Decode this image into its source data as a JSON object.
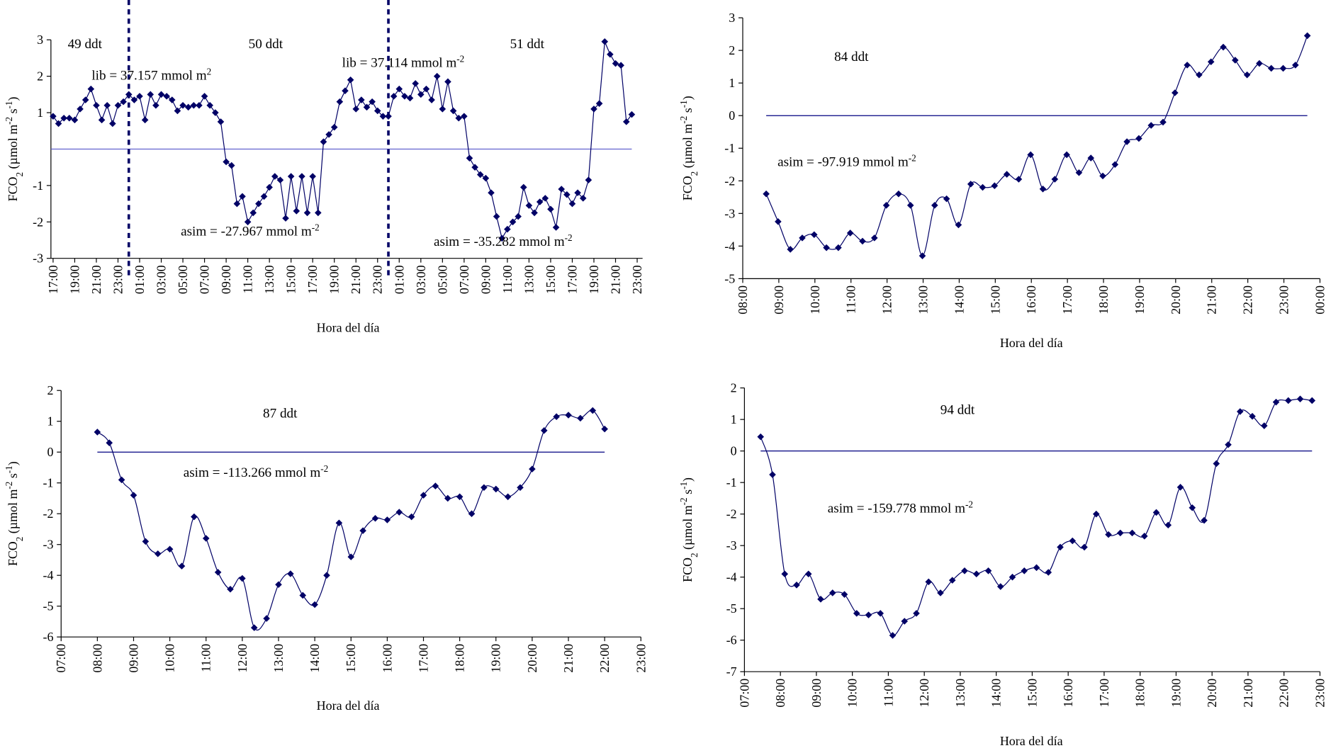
{
  "chart_data": [
    {
      "type": "line",
      "smooth": false,
      "color": "#000066",
      "hline": 0,
      "hline_color": "#5555cc",
      "vlines": [
        24,
        48
      ],
      "ylabel": [
        {
          "text": "FCO"
        },
        {
          "text": "2",
          "sub": true
        },
        {
          "text": " (µmol m"
        },
        {
          "text": "-2",
          "sup": true
        },
        {
          "text": " s"
        },
        {
          "text": "-1",
          "sup": true
        },
        {
          "text": ")"
        }
      ],
      "xlabel": "Hora del día",
      "annotations": [
        {
          "text": "49 ddt"
        },
        {
          "text": "50 ddt"
        },
        {
          "text": "51 ddt"
        },
        {
          "text": "lib = 37.157 mmol m",
          "sup": "2"
        },
        {
          "text": "lib = 37.114 mmol m",
          "sup": "-2"
        },
        {
          "text": "asim = -27.967 mmol m",
          "sup": "-2"
        },
        {
          "text": "asim = -35.282 mmol m",
          "sup": "-2"
        }
      ],
      "xlim": [
        16.8,
        71.5
      ],
      "ylim": [
        -3,
        3
      ],
      "yticks": [
        -3,
        -2,
        -1,
        1,
        2,
        3
      ],
      "xticks": [
        {
          "value": 17,
          "label": "17:00"
        },
        {
          "value": 19,
          "label": "19:00"
        },
        {
          "value": 21,
          "label": "21:00"
        },
        {
          "value": 23,
          "label": "23:00"
        },
        {
          "value": 25,
          "label": "01:00"
        },
        {
          "value": 27,
          "label": "03:00"
        },
        {
          "value": 29,
          "label": "05:00"
        },
        {
          "value": 31,
          "label": "07:00"
        },
        {
          "value": 33,
          "label": "09:00"
        },
        {
          "value": 35,
          "label": "11:00"
        },
        {
          "value": 37,
          "label": "13:00"
        },
        {
          "value": 39,
          "label": "15:00"
        },
        {
          "value": 41,
          "label": "17:00"
        },
        {
          "value": 43,
          "label": "19:00"
        },
        {
          "value": 45,
          "label": "21:00"
        },
        {
          "value": 47,
          "label": "23:00"
        },
        {
          "value": 49,
          "label": "01:00"
        },
        {
          "value": 51,
          "label": "03:00"
        },
        {
          "value": 53,
          "label": "05:00"
        },
        {
          "value": 55,
          "label": "07:00"
        },
        {
          "value": 57,
          "label": "09:00"
        },
        {
          "value": 59,
          "label": "11:00"
        },
        {
          "value": 61,
          "label": "13:00"
        },
        {
          "value": 63,
          "label": "15:00"
        },
        {
          "value": 65,
          "label": "17:00"
        },
        {
          "value": 67,
          "label": "19:00"
        },
        {
          "value": 69,
          "label": "21:00"
        },
        {
          "value": 71,
          "label": "23:00"
        }
      ],
      "x": [
        17,
        17.5,
        18,
        18.5,
        19,
        19.5,
        20,
        20.5,
        21,
        21.5,
        22,
        22.5,
        23,
        23.5,
        24,
        24.5,
        25,
        25.5,
        26,
        26.5,
        27,
        27.5,
        28,
        28.5,
        29,
        29.5,
        30,
        30.5,
        31,
        31.5,
        32,
        32.5,
        33,
        33.5,
        34,
        34.5,
        35,
        35.5,
        36,
        36.5,
        37,
        37.5,
        38,
        38.5,
        39,
        39.5,
        40,
        40.5,
        41,
        41.5,
        42,
        42.5,
        43,
        43.5,
        44,
        44.5,
        45,
        45.5,
        46,
        46.5,
        47,
        47.5,
        48,
        48.5,
        49,
        49.5,
        50,
        50.5,
        51,
        51.5,
        52,
        52.5,
        53,
        53.5,
        54,
        54.5,
        55,
        55.5,
        56,
        56.5,
        57,
        57.5,
        58,
        58.5,
        59,
        59.5,
        60,
        60.5,
        61,
        61.5,
        62,
        62.5,
        63,
        63.5,
        64,
        64.5,
        65,
        65.5,
        66,
        66.5,
        67,
        67.5,
        68,
        68.5,
        69,
        69.5,
        70,
        70.5
      ],
      "values": [
        0.9,
        0.7,
        0.85,
        0.85,
        0.8,
        1.1,
        1.35,
        1.65,
        1.2,
        0.8,
        1.2,
        0.7,
        1.2,
        1.3,
        1.5,
        1.35,
        1.45,
        0.8,
        1.5,
        1.2,
        1.5,
        1.45,
        1.35,
        1.05,
        1.2,
        1.15,
        1.2,
        1.2,
        1.45,
        1.2,
        1.0,
        0.75,
        -0.35,
        -0.45,
        -1.5,
        -1.3,
        -2.0,
        -1.75,
        -1.5,
        -1.3,
        -1.05,
        -0.75,
        -0.85,
        -1.9,
        -0.75,
        -1.7,
        -0.75,
        -1.75,
        -0.75,
        -1.75,
        0.2,
        0.4,
        0.6,
        1.3,
        1.6,
        1.9,
        1.1,
        1.35,
        1.15,
        1.3,
        1.05,
        0.9,
        0.9,
        1.45,
        1.65,
        1.45,
        1.4,
        1.8,
        1.5,
        1.65,
        1.35,
        2.0,
        1.1,
        1.85,
        1.05,
        0.85,
        0.9,
        -0.25,
        -0.5,
        -0.7,
        -0.8,
        -1.2,
        -1.85,
        -2.45,
        -2.2,
        -2.0,
        -1.85,
        -1.05,
        -1.55,
        -1.75,
        -1.45,
        -1.35,
        -1.65,
        -2.15,
        -1.1,
        -1.25,
        -1.5,
        -1.2,
        -1.35,
        -0.85,
        1.1,
        1.25,
        2.95,
        2.6,
        2.35,
        2.3,
        0.75,
        0.95
      ]
    },
    {
      "type": "line",
      "smooth": true,
      "color": "#000066",
      "hline": 0,
      "hline_color": "#000080",
      "ylabel": [
        {
          "text": "FCO"
        },
        {
          "text": "2",
          "sub": true
        },
        {
          "text": " (µmol m"
        },
        {
          "text": "-2",
          "sup": true
        },
        {
          "text": " s"
        },
        {
          "text": "-1",
          "sup": true
        },
        {
          "text": ")"
        }
      ],
      "xlabel": "Hora del día",
      "annotations": [
        {
          "text": "84 ddt"
        },
        {
          "text": "asim = -97.919 mmol m",
          "sup": "-2"
        }
      ],
      "xlim": [
        8,
        24
      ],
      "ylim": [
        -5,
        3
      ],
      "yticks": [
        -5,
        -4,
        -3,
        -2,
        -1,
        0,
        1,
        2,
        3
      ],
      "xticks": [
        {
          "value": 8,
          "label": "08:00"
        },
        {
          "value": 9,
          "label": "09:00"
        },
        {
          "value": 10,
          "label": "10:00"
        },
        {
          "value": 11,
          "label": "11:00"
        },
        {
          "value": 12,
          "label": "12:00"
        },
        {
          "value": 13,
          "label": "13:00"
        },
        {
          "value": 14,
          "label": "14:00"
        },
        {
          "value": 15,
          "label": "15:00"
        },
        {
          "value": 16,
          "label": "16:00"
        },
        {
          "value": 17,
          "label": "17:00"
        },
        {
          "value": 18,
          "label": "18:00"
        },
        {
          "value": 19,
          "label": "19:00"
        },
        {
          "value": 20,
          "label": "20:00"
        },
        {
          "value": 21,
          "label": "21:00"
        },
        {
          "value": 22,
          "label": "22:00"
        },
        {
          "value": 23,
          "label": "23:00"
        },
        {
          "value": 24,
          "label": "00:00"
        }
      ],
      "x": [
        8.65,
        8.98,
        9.32,
        9.65,
        9.98,
        10.32,
        10.65,
        10.98,
        11.32,
        11.65,
        11.98,
        12.32,
        12.65,
        12.98,
        13.32,
        13.65,
        13.98,
        14.32,
        14.65,
        14.98,
        15.32,
        15.65,
        15.98,
        16.32,
        16.65,
        16.98,
        17.32,
        17.65,
        17.98,
        18.32,
        18.65,
        18.98,
        19.32,
        19.65,
        19.98,
        20.32,
        20.65,
        20.98,
        21.32,
        21.65,
        21.98,
        22.32,
        22.65,
        22.98,
        23.32,
        23.65
      ],
      "values": [
        -2.4,
        -3.25,
        -4.1,
        -3.75,
        -3.65,
        -4.05,
        -4.05,
        -3.6,
        -3.85,
        -3.75,
        -2.75,
        -2.4,
        -2.75,
        -4.3,
        -2.75,
        -2.55,
        -3.35,
        -2.1,
        -2.2,
        -2.15,
        -1.8,
        -1.95,
        -1.2,
        -2.25,
        -1.95,
        -1.2,
        -1.75,
        -1.3,
        -1.85,
        -1.5,
        -0.8,
        -0.7,
        -0.3,
        -0.2,
        0.7,
        1.55,
        1.25,
        1.65,
        2.1,
        1.7,
        1.25,
        1.6,
        1.45,
        1.45,
        1.55,
        2.45
      ]
    },
    {
      "type": "line",
      "smooth": true,
      "color": "#000066",
      "hline": 0,
      "hline_color": "#000080",
      "ylabel": [
        {
          "text": "FCO"
        },
        {
          "text": "2",
          "sub": true
        },
        {
          "text": " (µmol m"
        },
        {
          "text": "-2",
          "sup": true
        },
        {
          "text": " s"
        },
        {
          "text": "-1",
          "sup": true
        },
        {
          "text": ")"
        }
      ],
      "xlabel": "Hora del día",
      "annotations": [
        {
          "text": "87 ddt"
        },
        {
          "text": "asim = -113.266 mmol m",
          "sup": "-2"
        }
      ],
      "xlim": [
        7,
        23
      ],
      "ylim": [
        -6,
        2
      ],
      "yticks": [
        -6,
        -5,
        -4,
        -3,
        -2,
        -1,
        0,
        1,
        2
      ],
      "xticks": [
        {
          "value": 7,
          "label": "07:00"
        },
        {
          "value": 8,
          "label": "08:00"
        },
        {
          "value": 9,
          "label": "09:00"
        },
        {
          "value": 10,
          "label": "10:00"
        },
        {
          "value": 11,
          "label": "11:00"
        },
        {
          "value": 12,
          "label": "12:00"
        },
        {
          "value": 13,
          "label": "13:00"
        },
        {
          "value": 14,
          "label": "14:00"
        },
        {
          "value": 15,
          "label": "15:00"
        },
        {
          "value": 16,
          "label": "16:00"
        },
        {
          "value": 17,
          "label": "17:00"
        },
        {
          "value": 18,
          "label": "18:00"
        },
        {
          "value": 19,
          "label": "19:00"
        },
        {
          "value": 20,
          "label": "20:00"
        },
        {
          "value": 21,
          "label": "21:00"
        },
        {
          "value": 22,
          "label": "22:00"
        },
        {
          "value": 23,
          "label": "23:00"
        }
      ],
      "x": [
        8,
        8.33,
        8.67,
        9,
        9.33,
        9.67,
        10,
        10.33,
        10.67,
        11,
        11.33,
        11.67,
        12,
        12.33,
        12.67,
        13,
        13.33,
        13.67,
        14,
        14.33,
        14.67,
        15,
        15.33,
        15.67,
        16,
        16.33,
        16.67,
        17,
        17.33,
        17.67,
        18,
        18.33,
        18.67,
        19,
        19.33,
        19.67,
        20,
        20.33,
        20.67,
        21,
        21.33,
        21.67,
        22
      ],
      "values": [
        0.65,
        0.3,
        -0.9,
        -1.4,
        -2.9,
        -3.3,
        -3.15,
        -3.7,
        -2.1,
        -2.8,
        -3.9,
        -4.45,
        -4.1,
        -5.7,
        -5.4,
        -4.3,
        -3.95,
        -4.65,
        -4.95,
        -4.0,
        -2.3,
        -3.4,
        -2.55,
        -2.15,
        -2.2,
        -1.95,
        -2.1,
        -1.4,
        -1.1,
        -1.5,
        -1.45,
        -2.0,
        -1.15,
        -1.2,
        -1.45,
        -1.15,
        -0.55,
        0.7,
        1.15,
        1.2,
        1.1,
        1.35,
        0.75
      ]
    },
    {
      "type": "line",
      "smooth": true,
      "color": "#000066",
      "hline": 0,
      "hline_color": "#000080",
      "ylabel": [
        {
          "text": "FCO"
        },
        {
          "text": "2",
          "sub": true
        },
        {
          "text": " (µmol m"
        },
        {
          "text": "-2",
          "sup": true
        },
        {
          "text": " s"
        },
        {
          "text": "-1",
          "sup": true
        },
        {
          "text": ")"
        }
      ],
      "xlabel": "Hora del día",
      "annotations": [
        {
          "text": "94 ddt"
        },
        {
          "text": "asim = -159.778 mmol m",
          "sup": "-2"
        }
      ],
      "xlim": [
        7,
        23
      ],
      "ylim": [
        -7,
        2
      ],
      "yticks": [
        -7,
        -6,
        -5,
        -4,
        -3,
        -2,
        -1,
        0,
        1,
        2
      ],
      "xticks": [
        {
          "value": 7,
          "label": "07:00"
        },
        {
          "value": 8,
          "label": "08:00"
        },
        {
          "value": 9,
          "label": "09:00"
        },
        {
          "value": 10,
          "label": "10:00"
        },
        {
          "value": 11,
          "label": "11:00"
        },
        {
          "value": 12,
          "label": "12:00"
        },
        {
          "value": 13,
          "label": "13:00"
        },
        {
          "value": 14,
          "label": "14:00"
        },
        {
          "value": 15,
          "label": "15:00"
        },
        {
          "value": 16,
          "label": "16:00"
        },
        {
          "value": 17,
          "label": "17:00"
        },
        {
          "value": 18,
          "label": "18:00"
        },
        {
          "value": 19,
          "label": "19:00"
        },
        {
          "value": 20,
          "label": "20:00"
        },
        {
          "value": 21,
          "label": "21:00"
        },
        {
          "value": 22,
          "label": "22:00"
        },
        {
          "value": 23,
          "label": "23:00"
        }
      ],
      "x": [
        7.45,
        7.78,
        8.12,
        8.45,
        8.78,
        9.12,
        9.45,
        9.78,
        10.12,
        10.45,
        10.78,
        11.12,
        11.45,
        11.78,
        12.12,
        12.45,
        12.78,
        13.12,
        13.45,
        13.78,
        14.12,
        14.45,
        14.78,
        15.12,
        15.45,
        15.78,
        16.12,
        16.45,
        16.78,
        17.12,
        17.45,
        17.78,
        18.12,
        18.45,
        18.78,
        19.12,
        19.45,
        19.78,
        20.12,
        20.45,
        20.78,
        21.12,
        21.45,
        21.78,
        22.12,
        22.45,
        22.78
      ],
      "values": [
        0.45,
        -0.75,
        -3.9,
        -4.25,
        -3.9,
        -4.7,
        -4.5,
        -4.55,
        -5.15,
        -5.2,
        -5.15,
        -5.85,
        -5.4,
        -5.15,
        -4.15,
        -4.5,
        -4.1,
        -3.8,
        -3.9,
        -3.8,
        -4.3,
        -4.0,
        -3.8,
        -3.7,
        -3.85,
        -3.05,
        -2.85,
        -3.05,
        -2.0,
        -2.65,
        -2.6,
        -2.6,
        -2.7,
        -1.95,
        -2.35,
        -1.15,
        -1.8,
        -2.2,
        -0.4,
        0.2,
        1.25,
        1.1,
        0.8,
        1.55,
        1.6,
        1.65,
        1.6
      ]
    }
  ]
}
